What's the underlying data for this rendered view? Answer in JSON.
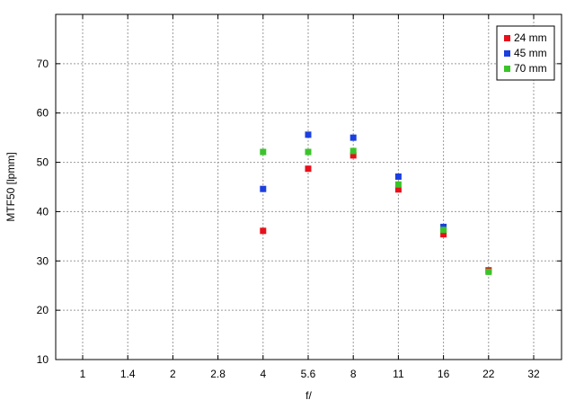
{
  "chart_data": {
    "type": "scatter",
    "xlabel": "f/",
    "ylabel": "MTF50 [lpmm]",
    "x_ticks": [
      "1",
      "1.4",
      "2",
      "2.8",
      "4",
      "5.6",
      "8",
      "11",
      "16",
      "22",
      "32"
    ],
    "xlim": [
      "0.7",
      "45"
    ],
    "ylim": [
      10,
      80
    ],
    "y_ticks": [
      10,
      20,
      30,
      40,
      50,
      60,
      70
    ],
    "grid": true,
    "legend": "top-right",
    "series": [
      {
        "name": "24 mm",
        "color": "#e8101a",
        "points": [
          {
            "x": "4",
            "y": 36.1
          },
          {
            "x": "5.6",
            "y": 48.7
          },
          {
            "x": "8",
            "y": 51.4
          },
          {
            "x": "11",
            "y": 44.5
          },
          {
            "x": "16",
            "y": 35.4
          },
          {
            "x": "22",
            "y": 28.1
          }
        ]
      },
      {
        "name": "45 mm",
        "color": "#1c3fe0",
        "points": [
          {
            "x": "4",
            "y": 44.6
          },
          {
            "x": "5.6",
            "y": 55.6
          },
          {
            "x": "8",
            "y": 55.0
          },
          {
            "x": "11",
            "y": 47.1
          },
          {
            "x": "16",
            "y": 36.9
          }
        ]
      },
      {
        "name": "70 mm",
        "color": "#3ac42a",
        "points": [
          {
            "x": "4",
            "y": 52.1
          },
          {
            "x": "5.6",
            "y": 52.1
          },
          {
            "x": "8",
            "y": 52.3
          },
          {
            "x": "11",
            "y": 45.5
          },
          {
            "x": "16",
            "y": 36.3
          },
          {
            "x": "22",
            "y": 27.8
          }
        ]
      }
    ]
  }
}
